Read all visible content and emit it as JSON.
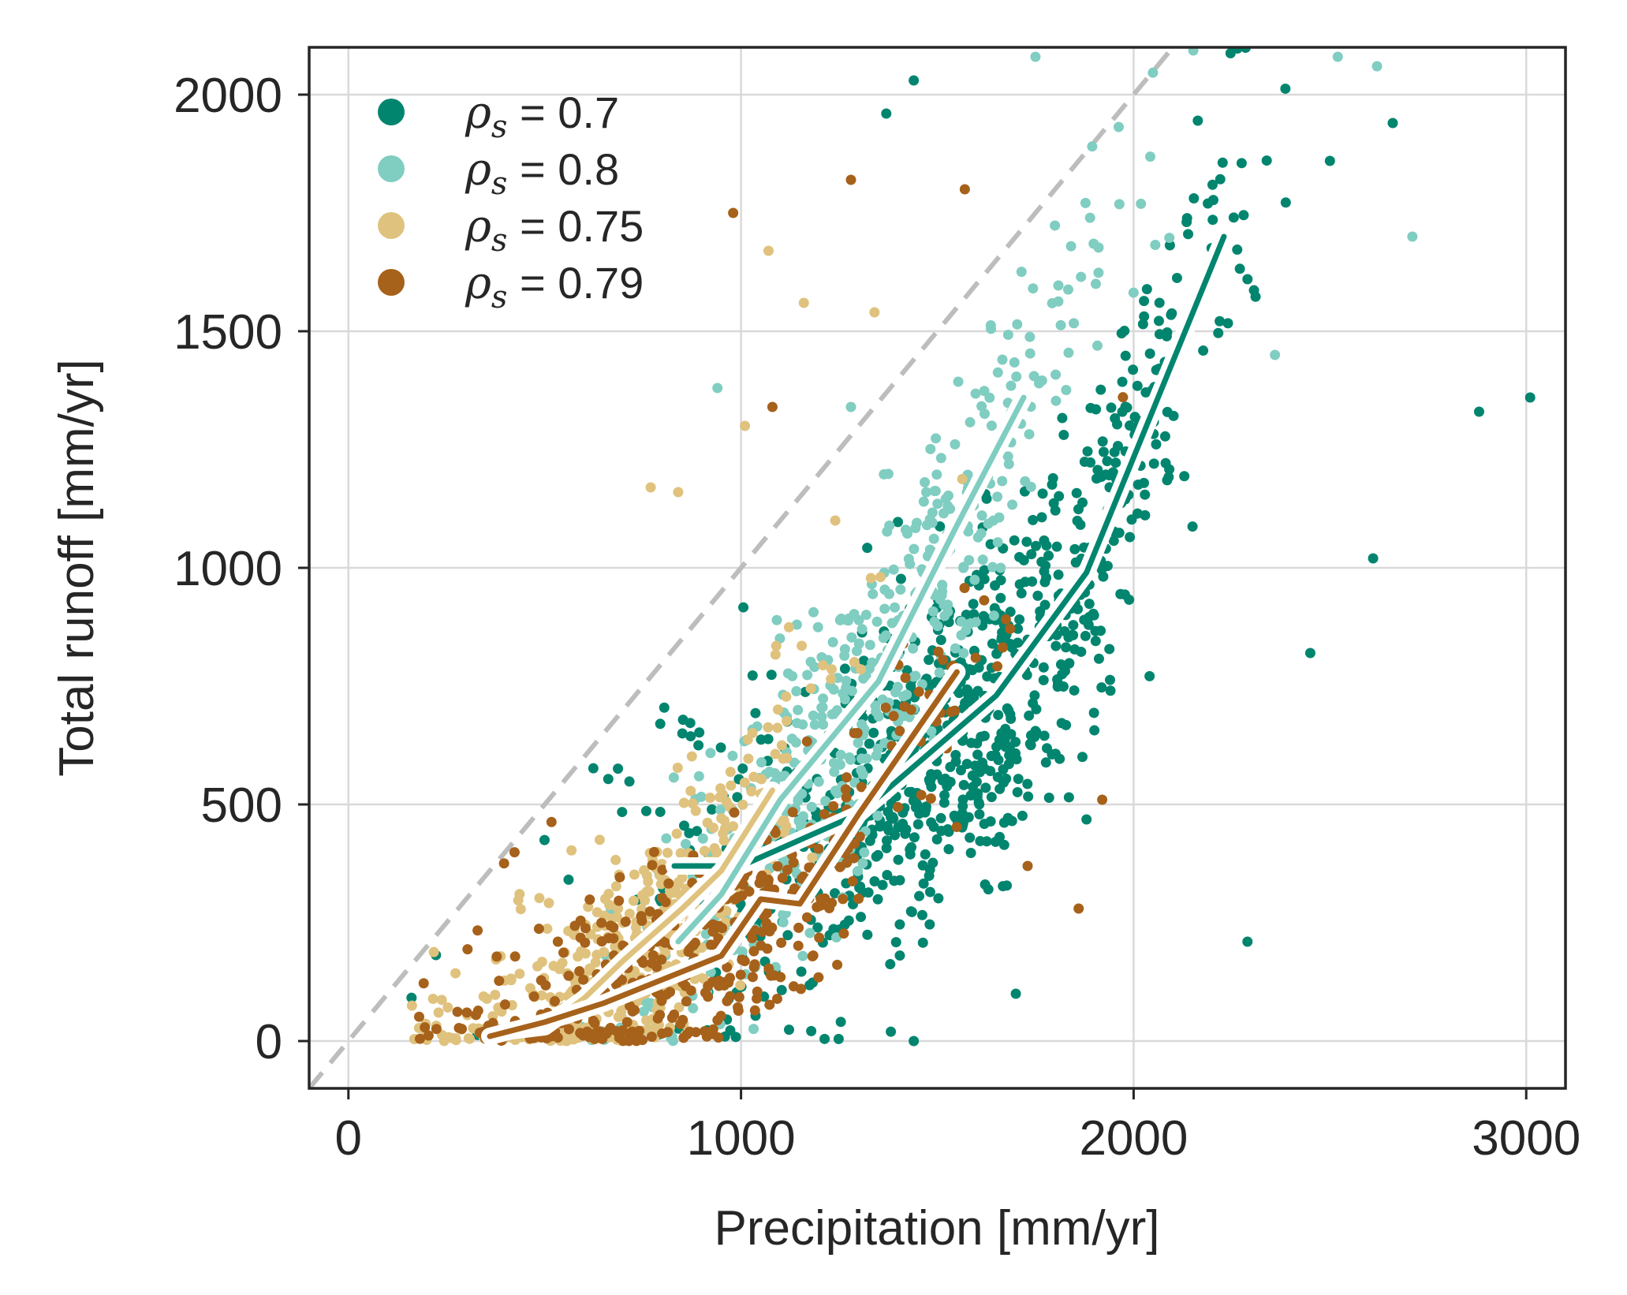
{
  "chart_data": {
    "type": "scatter",
    "xlabel": "Precipitation [mm/yr]",
    "ylabel": "Total runoff [mm/yr]",
    "xlim": [
      -100,
      3100
    ],
    "ylim": [
      -100,
      2100
    ],
    "xticks": [
      0,
      1000,
      2000,
      3000
    ],
    "yticks": [
      0,
      500,
      1000,
      1500,
      2000
    ],
    "grid": true,
    "legend_position": "upper-left",
    "reference_line": {
      "label": "",
      "style": "dashed",
      "color": "#bdbdbd",
      "x": [
        -100,
        2200
      ],
      "y": [
        -100,
        2200
      ]
    },
    "series": [
      {
        "name": "ρs = 0.7",
        "legend_prefix": "ρ",
        "legend_sub": "s",
        "legend_value": " = 0.7",
        "color": "#01856f",
        "center": [
          1550,
          760
        ],
        "spread": [
          360,
          330
        ],
        "count": 900,
        "trend": {
          "x": [
            830,
            1000,
            1300,
            1650,
            1880,
            2230
          ],
          "y": [
            370,
            370,
            480,
            730,
            990,
            1700
          ]
        },
        "outliers": [
          [
            1440,
            2030
          ],
          [
            2880,
            1330
          ],
          [
            3010,
            1360
          ],
          [
            2610,
            1020
          ],
          [
            2290,
            210
          ],
          [
            1700,
            100
          ],
          [
            1440,
            0
          ],
          [
            1370,
            1960
          ],
          [
            2660,
            1940
          ],
          [
            2500,
            1860
          ],
          [
            2290,
            1610
          ],
          [
            2450,
            820
          ]
        ]
      },
      {
        "name": "ρs = 0.8",
        "legend_prefix": "ρ",
        "legend_sub": "s",
        "legend_value": " = 0.8",
        "color": "#80cdc1",
        "center": [
          1300,
          720
        ],
        "spread": [
          330,
          300
        ],
        "count": 520,
        "trend": {
          "x": [
            840,
            950,
            1100,
            1350,
            1550,
            1720
          ],
          "y": [
            210,
            310,
            510,
            760,
            1090,
            1360
          ]
        },
        "outliers": [
          [
            940,
            1380
          ],
          [
            2710,
            1700
          ],
          [
            2620,
            2060
          ],
          [
            2520,
            2080
          ],
          [
            2360,
            1450
          ],
          [
            1280,
            1340
          ],
          [
            1750,
            2080
          ]
        ]
      },
      {
        "name": "ρs = 0.75",
        "legend_prefix": "ρ",
        "legend_sub": "s",
        "legend_value": " = 0.75",
        "color": "#dfc27d",
        "center": [
          700,
          320
        ],
        "spread": [
          230,
          210
        ],
        "count": 520,
        "trend": {
          "x": [
            400,
            500,
            600,
            700,
            850,
            950,
            1080
          ],
          "y": [
            20,
            30,
            90,
            170,
            280,
            360,
            530
          ]
        },
        "outliers": [
          [
            770,
            1170
          ],
          [
            840,
            1160
          ],
          [
            1070,
            1670
          ],
          [
            1160,
            1560
          ],
          [
            1340,
            1540
          ],
          [
            1240,
            1100
          ],
          [
            1010,
            1300
          ]
        ]
      },
      {
        "name": "ρs = 0.79",
        "legend_prefix": "ρ",
        "legend_sub": "s",
        "legend_value": " = 0.79",
        "color": "#a6611a",
        "center": [
          900,
          220
        ],
        "spread": [
          330,
          210
        ],
        "count": 420,
        "trend": {
          "x": [
            360,
            500,
            650,
            800,
            950,
            1050,
            1150,
            1300,
            1550
          ],
          "y": [
            10,
            40,
            80,
            130,
            180,
            300,
            290,
            480,
            780
          ]
        },
        "outliers": [
          [
            980,
            1750
          ],
          [
            1080,
            1340
          ],
          [
            1920,
            510
          ],
          [
            1730,
            370
          ],
          [
            1860,
            280
          ],
          [
            1280,
            1820
          ],
          [
            1570,
            1800
          ]
        ]
      }
    ]
  }
}
